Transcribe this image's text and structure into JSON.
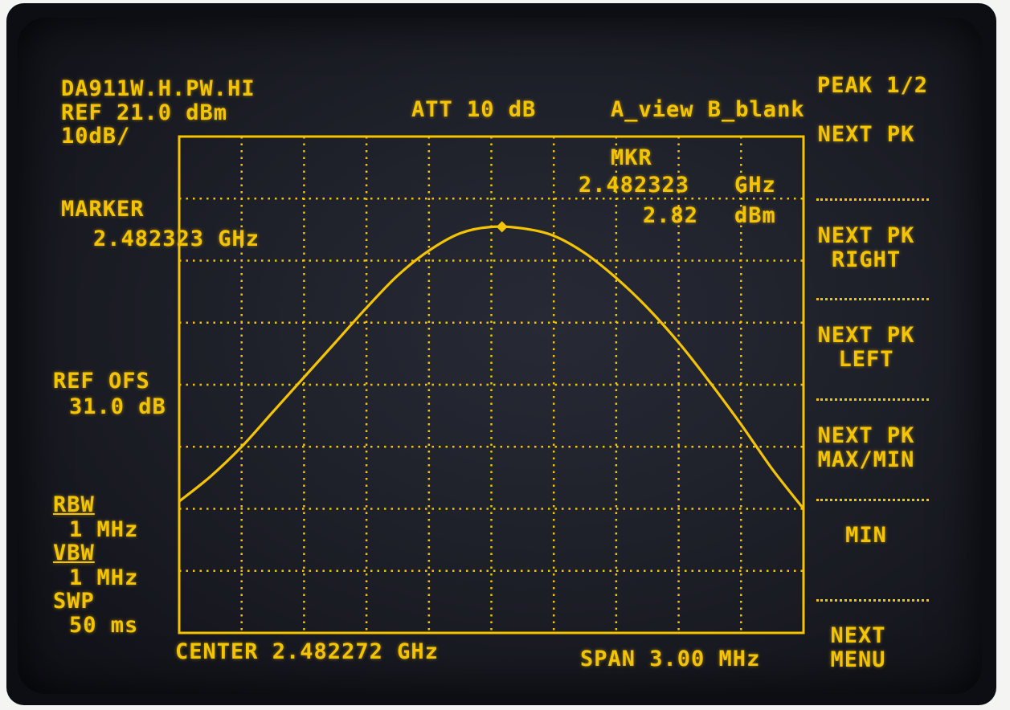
{
  "header": {
    "file_name": "DA911W.H.PW.HI",
    "ref_level": "REF 21.0 dBm",
    "scale": "10dB/",
    "attenuation": "ATT 10 dB",
    "trace_state": "A_view B_blank"
  },
  "marker_readout": {
    "label": "MKR",
    "frequency": "2.482323",
    "frequency_unit": "GHz",
    "amplitude": "2.82",
    "amplitude_unit": "dBm"
  },
  "left_panel": {
    "marker_label": "MARKER",
    "marker_value": "2.482323 GHz",
    "ref_ofs_label": "REF OFS",
    "ref_ofs_value": "31.0 dB",
    "rbw_label": "RBW",
    "rbw_value": "1 MHz",
    "vbw_label": "VBW",
    "vbw_value": "1 MHz",
    "swp_label": "SWP",
    "swp_value": "50 ms"
  },
  "footer": {
    "center": "CENTER 2.482272 GHz",
    "span": "SPAN 3.00 MHz"
  },
  "softkeys": {
    "title": "PEAK 1/2",
    "next_pk": "NEXT PK",
    "next_pk_right_1": "NEXT PK",
    "next_pk_right_2": "RIGHT",
    "next_pk_left_1": "NEXT PK",
    "next_pk_left_2": "LEFT",
    "next_pk_maxmin_1": "NEXT PK",
    "next_pk_maxmin_2": "MAX/MIN",
    "min": "MIN",
    "next_menu_1": "NEXT",
    "next_menu_2": "MENU"
  },
  "colors": {
    "trace": "#f5c400",
    "graticule": "#f5c400",
    "screen": "#1e2029"
  },
  "chart_data": {
    "type": "line",
    "title": "",
    "xlabel": "",
    "ylabel": "",
    "x_unit": "GHz",
    "y_unit": "dBm",
    "grid": true,
    "xlim": [
      2.480772,
      2.483772
    ],
    "ylim": [
      -79.0,
      21.0
    ],
    "marker": {
      "x": 2.482323,
      "y": 2.82
    },
    "series": [
      {
        "x": [
          2.480772,
          2.480922,
          2.481072,
          2.481222,
          2.481372,
          2.481522,
          2.481672,
          2.481822,
          2.481972,
          2.482122,
          2.482272,
          2.482422,
          2.482572,
          2.482722,
          2.482872,
          2.483022,
          2.483172,
          2.483322,
          2.483472,
          2.483622,
          2.483772
        ],
        "values": [
          -52.5,
          -47.5,
          -41.5,
          -34.5,
          -27.5,
          -20.5,
          -13.5,
          -7.0,
          -2.0,
          1.5,
          2.8,
          2.5,
          1.0,
          -2.5,
          -7.5,
          -13.5,
          -20.5,
          -28.5,
          -37.0,
          -46.0,
          -54.0
        ]
      }
    ]
  }
}
